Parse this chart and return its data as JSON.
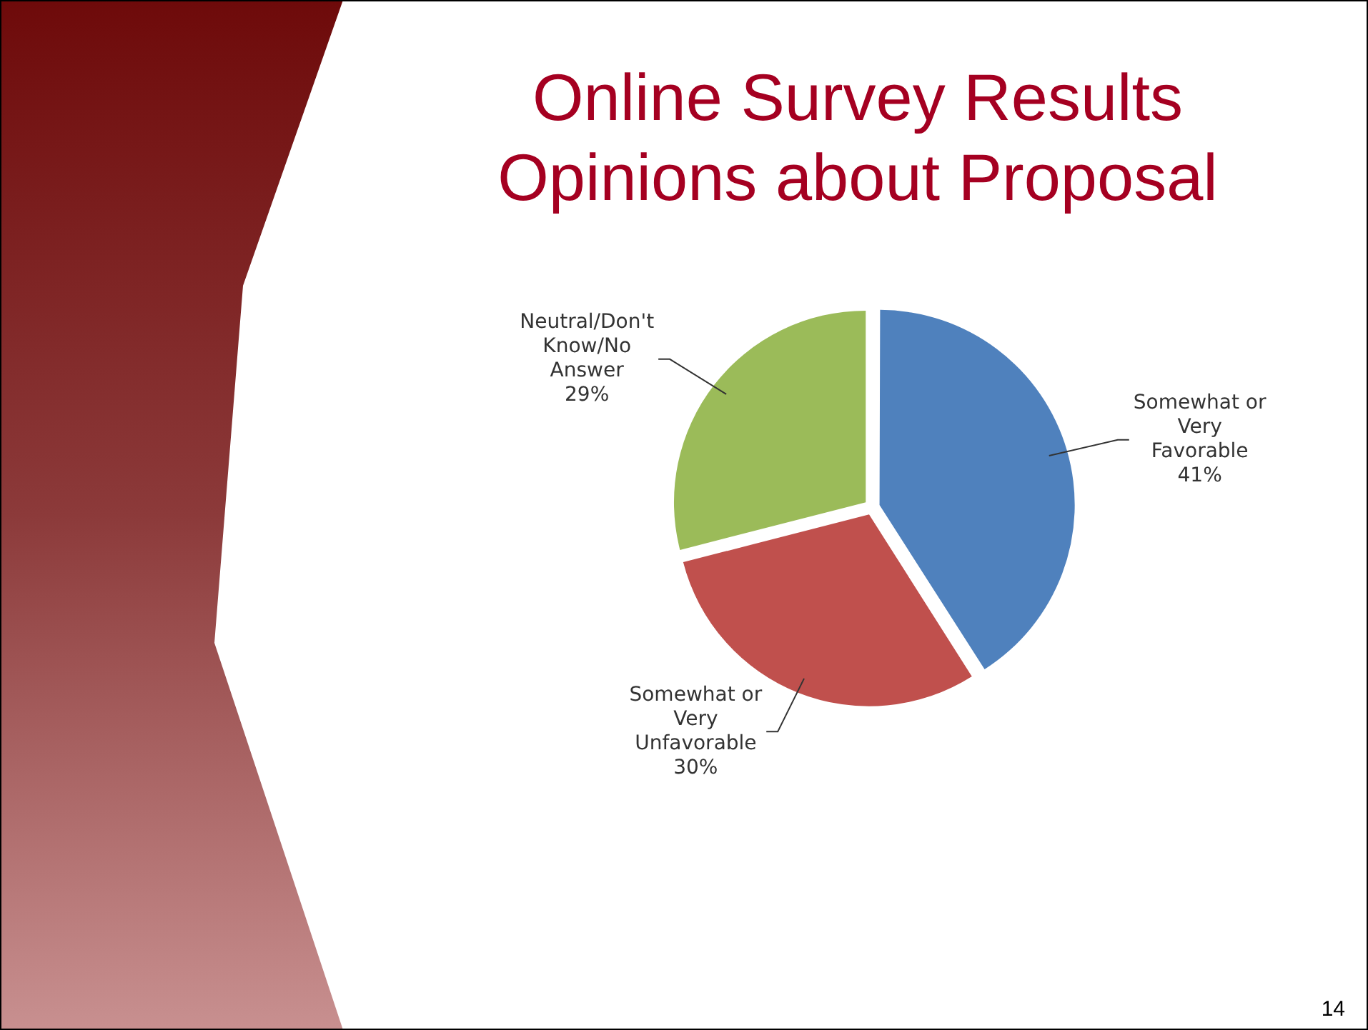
{
  "chart_data": {
    "type": "pie",
    "title": "Online Survey Results",
    "subtitle": "Opinions about Proposal",
    "categories": [
      "Somewhat or Very Favorable",
      "Somewhat or Very Unfavorable",
      "Neutral/Don't Know/No Answer"
    ],
    "values": [
      41,
      30,
      29
    ],
    "value_labels": [
      "41%",
      "30%",
      "29%"
    ],
    "colors": [
      "#4f81bd",
      "#c0504d",
      "#9bbb59"
    ],
    "legend": false,
    "annotations": [
      "14"
    ]
  }
}
